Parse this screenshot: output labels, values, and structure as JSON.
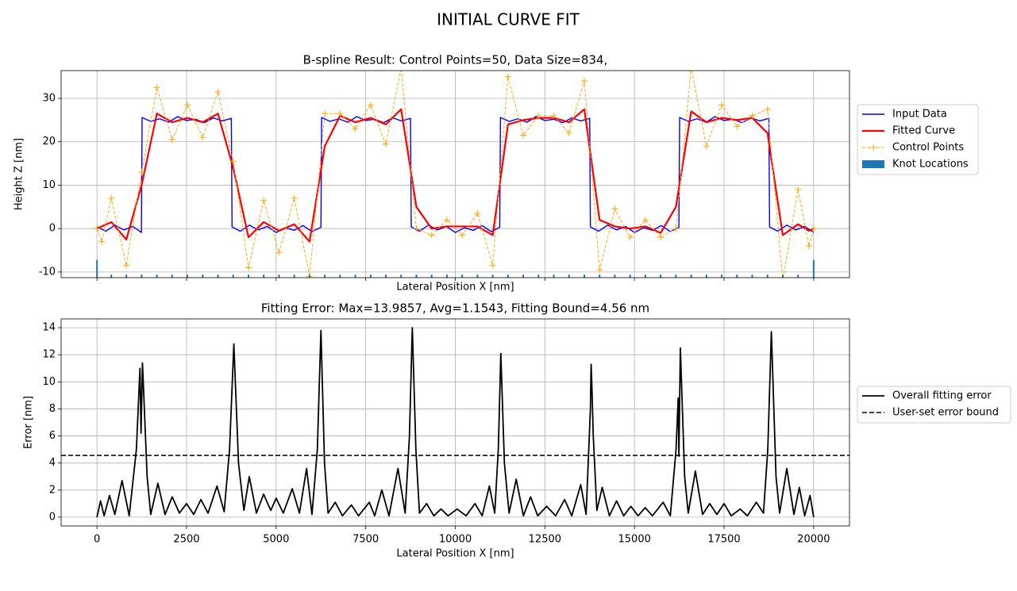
{
  "suptitle": "INITIAL CURVE FIT",
  "chart_data": [
    {
      "type": "line",
      "title": "B-spline Result: Control Points=50, Data Size=834,",
      "xlabel": "Lateral Position X [nm]",
      "ylabel": "Height Z [nm]",
      "xlim": [
        -1000,
        21000
      ],
      "ylim": [
        -11.3,
        36.4
      ],
      "xticks": [
        0,
        2500,
        5000,
        7500,
        10000,
        12500,
        15000,
        17500,
        20000
      ],
      "yticks": [
        -10,
        0,
        10,
        20,
        30
      ],
      "show_xticklabels": false,
      "grid": true,
      "legend": "outside right",
      "series": [
        {
          "name": "Input Data",
          "kind": "line",
          "color": "#0000ff",
          "x": [
            0,
            250,
            500,
            750,
            1000,
            1240,
            1260,
            1500,
            1750,
            2000,
            2250,
            2500,
            2750,
            3000,
            3250,
            3500,
            3750,
            3770,
            4000,
            4250,
            4500,
            4750,
            5000,
            5250,
            5500,
            5750,
            6000,
            6250,
            6270,
            6500,
            6750,
            7000,
            7250,
            7500,
            7750,
            8000,
            8250,
            8500,
            8750,
            8770,
            9000,
            9250,
            9500,
            9750,
            10000,
            10250,
            10500,
            10750,
            11000,
            11240,
            11260,
            11500,
            11750,
            12000,
            12250,
            12500,
            12750,
            13000,
            13250,
            13500,
            13750,
            13770,
            14000,
            14250,
            14500,
            14750,
            15000,
            15250,
            15500,
            15750,
            16000,
            16240,
            16260,
            16500,
            16750,
            17000,
            17250,
            17500,
            17750,
            18000,
            18250,
            18500,
            18750,
            18770,
            19000,
            19250,
            19500,
            19750,
            20000
          ],
          "values": [
            0.4,
            -0.6,
            0.8,
            -0.3,
            0.5,
            -0.9,
            25.6,
            24.7,
            25.3,
            24.5,
            25.8,
            24.9,
            25.2,
            24.4,
            25.5,
            24.8,
            25.4,
            0.4,
            -0.6,
            0.8,
            -0.3,
            0.5,
            -0.9,
            0.2,
            -0.4,
            0.7,
            -0.7,
            0.3,
            25.6,
            24.7,
            25.3,
            24.5,
            25.8,
            24.9,
            25.2,
            24.4,
            25.5,
            24.8,
            25.4,
            0.4,
            -0.6,
            0.8,
            -0.3,
            0.5,
            -0.9,
            0.2,
            -0.4,
            0.7,
            -0.7,
            0.3,
            25.6,
            24.7,
            25.3,
            24.5,
            25.8,
            24.9,
            25.2,
            24.4,
            25.5,
            24.8,
            25.4,
            0.4,
            -0.6,
            0.8,
            -0.3,
            0.5,
            -0.9,
            0.2,
            -0.4,
            0.7,
            -0.7,
            0.3,
            25.6,
            24.7,
            25.3,
            24.5,
            25.8,
            24.9,
            25.2,
            24.4,
            25.5,
            24.8,
            25.4,
            0.4,
            -0.6,
            0.8,
            -0.3,
            0.5,
            -0.9
          ]
        },
        {
          "name": "Fitted Curve",
          "kind": "line",
          "color": "#ff0000",
          "width": 2.2,
          "x": [
            0,
            133,
            400,
            820,
            1246,
            1672,
            2098,
            2524,
            2950,
            3376,
            3802,
            4228,
            4654,
            5080,
            5506,
            5932,
            6358,
            6784,
            7210,
            7636,
            8062,
            8488,
            8914,
            9340,
            9766,
            10192,
            10618,
            11044,
            11470,
            11896,
            12322,
            12748,
            13174,
            13600,
            14026,
            14452,
            14878,
            15304,
            15730,
            16156,
            16582,
            17008,
            17434,
            17860,
            18286,
            18712,
            19138,
            19564,
            19867,
            20000
          ],
          "values": [
            0,
            0.5,
            1.5,
            -2.5,
            10,
            26.5,
            24.5,
            25.5,
            24.5,
            26.5,
            14,
            -2,
            1.5,
            -0.5,
            1,
            -3,
            19,
            26,
            24.5,
            25.5,
            24,
            27.5,
            5,
            0,
            0.5,
            0.5,
            0.5,
            -1.5,
            24,
            25,
            25.5,
            25.5,
            24.5,
            27.5,
            2,
            0.5,
            0,
            0.5,
            -1,
            5,
            27,
            24.5,
            25.5,
            25,
            25.5,
            22,
            -1.5,
            1,
            -0.5,
            0
          ]
        },
        {
          "name": "Control Points",
          "kind": "dashed-markers",
          "color": "#ffa500",
          "x": [
            0,
            133,
            400,
            820,
            1246,
            1672,
            2098,
            2524,
            2950,
            3376,
            3802,
            4228,
            4654,
            5080,
            5506,
            5932,
            6358,
            6784,
            7210,
            7636,
            8062,
            8488,
            8914,
            9340,
            9766,
            10192,
            10618,
            11044,
            11470,
            11896,
            12322,
            12748,
            13174,
            13600,
            14026,
            14452,
            14878,
            15304,
            15730,
            16156,
            16582,
            17008,
            17434,
            17860,
            18286,
            18712,
            19138,
            19564,
            19867,
            20000
          ],
          "values": [
            0,
            -3,
            7,
            -8.5,
            13,
            32.5,
            20.5,
            28.5,
            21,
            31.5,
            15.5,
            -9,
            6.5,
            -5.5,
            7,
            -11,
            26.5,
            26.5,
            23,
            28.5,
            19.5,
            37,
            0,
            -1.5,
            2,
            -1.5,
            3.5,
            -8.5,
            35,
            21.5,
            26,
            26,
            22,
            34,
            -9.5,
            4.5,
            -2,
            2,
            -2,
            0,
            37,
            19,
            28.5,
            23.5,
            26,
            27.5,
            -12,
            9,
            -4,
            0
          ]
        },
        {
          "name": "Knot Locations",
          "kind": "bars",
          "color": "#1f77b4",
          "x": [
            0,
            400,
            820,
            1246,
            1672,
            2098,
            2524,
            2950,
            3376,
            3802,
            4228,
            4654,
            5080,
            5506,
            5932,
            6358,
            6784,
            7210,
            7636,
            8062,
            8488,
            8914,
            9340,
            9766,
            10192,
            10618,
            11044,
            11470,
            11896,
            12322,
            12748,
            13174,
            13600,
            14026,
            14452,
            14878,
            15304,
            15730,
            16156,
            16582,
            17008,
            17434,
            17860,
            18286,
            18712,
            19138,
            19564,
            20000
          ],
          "values": [
            -7.2,
            -10.6,
            -10.6,
            -10.6,
            -10.6,
            -10.6,
            -10.6,
            -10.6,
            -10.6,
            -10.6,
            -10.6,
            -10.6,
            -10.6,
            -10.6,
            -10.6,
            -10.6,
            -10.6,
            -10.6,
            -10.6,
            -10.6,
            -10.6,
            -10.6,
            -10.6,
            -10.6,
            -10.6,
            -10.6,
            -10.6,
            -10.6,
            -10.6,
            -10.6,
            -10.6,
            -10.6,
            -10.6,
            -10.6,
            -10.6,
            -10.6,
            -10.6,
            -10.6,
            -10.6,
            -10.6,
            -10.6,
            -10.6,
            -10.6,
            -10.6,
            -10.6,
            -10.6,
            -10.6,
            -7.2
          ]
        }
      ]
    },
    {
      "type": "line",
      "title": "Fitting Error: Max=13.9857, Avg=1.1543, Fitting Bound=4.56 nm",
      "xlabel": "Lateral Position X [nm]",
      "ylabel": "Error [nm]",
      "xlim": [
        -1000,
        21000
      ],
      "ylim": [
        -0.65,
        14.65
      ],
      "xticks": [
        0,
        2500,
        5000,
        7500,
        10000,
        12500,
        15000,
        17500,
        20000
      ],
      "yticks": [
        0,
        2,
        4,
        6,
        8,
        10,
        12,
        14
      ],
      "show_xticklabels": true,
      "grid": true,
      "legend": "outside right",
      "series": [
        {
          "name": "Overall fitting error",
          "kind": "line",
          "color": "#000000",
          "width": 1.8,
          "x": [
            0,
            100,
            200,
            350,
            500,
            700,
            900,
            1100,
            1200,
            1230,
            1270,
            1400,
            1500,
            1700,
            1900,
            2100,
            2300,
            2500,
            2700,
            2900,
            3100,
            3350,
            3550,
            3700,
            3820,
            3950,
            4100,
            4250,
            4450,
            4650,
            4850,
            5000,
            5200,
            5450,
            5650,
            5850,
            6000,
            6150,
            6250,
            6350,
            6450,
            6650,
            6850,
            7100,
            7300,
            7600,
            7750,
            7950,
            8150,
            8400,
            8600,
            8720,
            8800,
            8900,
            9000,
            9200,
            9400,
            9600,
            9800,
            10050,
            10300,
            10550,
            10750,
            10950,
            11100,
            11200,
            11270,
            11370,
            11500,
            11700,
            11900,
            12100,
            12300,
            12550,
            12800,
            13050,
            13250,
            13500,
            13650,
            13770,
            13790,
            13810,
            13850,
            13950,
            14100,
            14300,
            14500,
            14700,
            14900,
            15100,
            15300,
            15500,
            15800,
            16000,
            16160,
            16220,
            16240,
            16280,
            16400,
            16500,
            16700,
            16900,
            17100,
            17300,
            17500,
            17700,
            17950,
            18150,
            18400,
            18600,
            18720,
            18820,
            18950,
            19050,
            19250,
            19450,
            19600,
            19750,
            19900,
            20000
          ],
          "values": [
            0,
            1.2,
            0.1,
            1.6,
            0.2,
            2.7,
            0.1,
            5,
            11,
            6.2,
            11.4,
            3,
            0.2,
            2.5,
            0.2,
            1.5,
            0.3,
            1,
            0.2,
            1.3,
            0.3,
            2.3,
            0.4,
            5,
            12.8,
            4,
            0.5,
            3,
            0.3,
            1.7,
            0.5,
            1.4,
            0.3,
            2.1,
            0.3,
            3.6,
            0.2,
            5,
            13.8,
            4,
            0.3,
            1.1,
            0.1,
            0.9,
            0.1,
            1.1,
            0.1,
            2,
            0.1,
            3.6,
            0.3,
            6,
            14,
            5,
            0.3,
            1,
            0.1,
            0.6,
            0.1,
            0.6,
            0.1,
            1,
            0.1,
            2.3,
            0.3,
            5,
            12.1,
            4,
            0.3,
            2.8,
            0.1,
            1.5,
            0.1,
            0.8,
            0.1,
            1.3,
            0.1,
            2.4,
            0.2,
            8,
            11.3,
            9.8,
            6,
            0.5,
            2.2,
            0.1,
            1.2,
            0.1,
            0.8,
            0.1,
            0.7,
            0.1,
            1.1,
            0.1,
            5,
            8.8,
            4.5,
            12.5,
            3,
            0.3,
            3.4,
            0.2,
            1,
            0.2,
            1,
            0.1,
            0.6,
            0.1,
            1.1,
            0.3,
            5,
            13.7,
            3,
            0.3,
            3.6,
            0.2,
            2.2,
            0.1,
            1.6,
            0
          ]
        },
        {
          "name": "User-set error bound",
          "kind": "hline",
          "color": "#000000",
          "value": 4.56
        }
      ]
    }
  ]
}
